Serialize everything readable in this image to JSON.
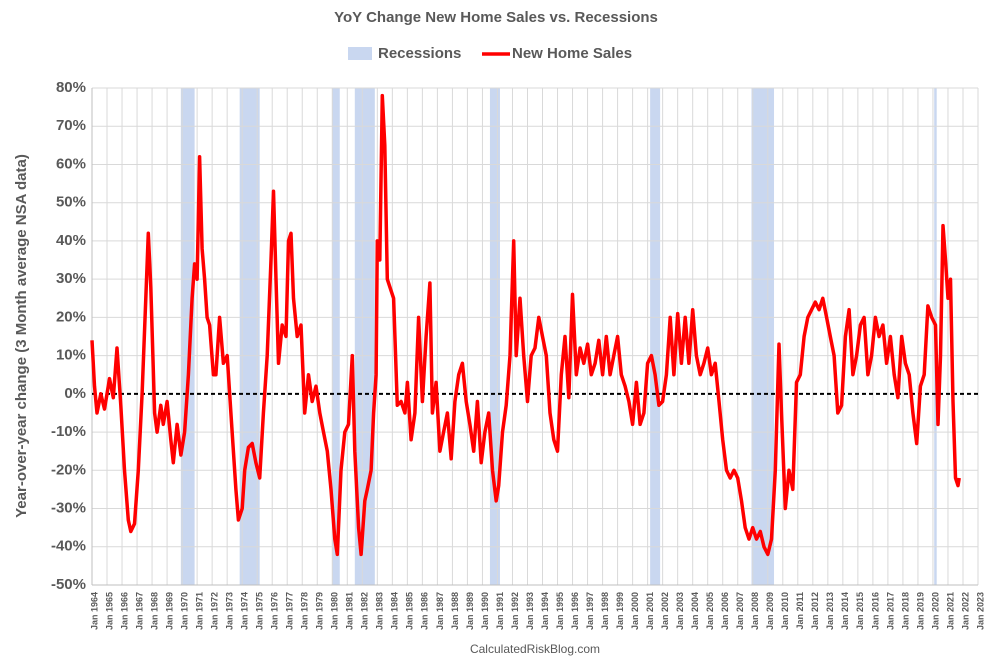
{
  "chart_data": {
    "type": "line",
    "title": "YoY Change New Home Sales vs. Recessions",
    "ylabel": "Year-over-year change (3 Month average NSA data)",
    "source": "CalculatedRiskBlog.com",
    "legend_position": "top",
    "grid": true,
    "ylim": [
      -50,
      80
    ],
    "yticks": [
      {
        "value": -50,
        "label": "-50%"
      },
      {
        "value": -40,
        "label": "-40%"
      },
      {
        "value": -30,
        "label": "-30%"
      },
      {
        "value": -20,
        "label": "-20%"
      },
      {
        "value": -10,
        "label": "-10%"
      },
      {
        "value": 0,
        "label": "0%"
      },
      {
        "value": 10,
        "label": "10%"
      },
      {
        "value": 20,
        "label": "20%"
      },
      {
        "value": 30,
        "label": "30%"
      },
      {
        "value": 40,
        "label": "40%"
      },
      {
        "value": 50,
        "label": "50%"
      },
      {
        "value": 60,
        "label": "60%"
      },
      {
        "value": 70,
        "label": "70%"
      },
      {
        "value": 80,
        "label": "80%"
      }
    ],
    "xlim": [
      "1964-01",
      "2023-01"
    ],
    "xticks": [
      {
        "value": "1964-01",
        "label": "Jan 1964"
      },
      {
        "value": "1965-01",
        "label": "Jan 1965"
      },
      {
        "value": "1966-01",
        "label": "Jan 1966"
      },
      {
        "value": "1967-01",
        "label": "Jan 1967"
      },
      {
        "value": "1968-01",
        "label": "Jan 1968"
      },
      {
        "value": "1969-01",
        "label": "Jan 1969"
      },
      {
        "value": "1970-01",
        "label": "Jan 1970"
      },
      {
        "value": "1971-01",
        "label": "Jan 1971"
      },
      {
        "value": "1972-01",
        "label": "Jan 1972"
      },
      {
        "value": "1973-01",
        "label": "Jan 1973"
      },
      {
        "value": "1974-01",
        "label": "Jan 1974"
      },
      {
        "value": "1975-01",
        "label": "Jan 1975"
      },
      {
        "value": "1976-01",
        "label": "Jan 1976"
      },
      {
        "value": "1977-01",
        "label": "Jan 1977"
      },
      {
        "value": "1978-01",
        "label": "Jan 1978"
      },
      {
        "value": "1979-01",
        "label": "Jan 1979"
      },
      {
        "value": "1980-01",
        "label": "Jan 1980"
      },
      {
        "value": "1981-01",
        "label": "Jan 1981"
      },
      {
        "value": "1982-01",
        "label": "Jan 1982"
      },
      {
        "value": "1983-01",
        "label": "Jan 1983"
      },
      {
        "value": "1984-01",
        "label": "Jan 1984"
      },
      {
        "value": "1985-01",
        "label": "Jan 1985"
      },
      {
        "value": "1986-01",
        "label": "Jan 1986"
      },
      {
        "value": "1987-01",
        "label": "Jan 1987"
      },
      {
        "value": "1988-01",
        "label": "Jan 1988"
      },
      {
        "value": "1989-01",
        "label": "Jan 1989"
      },
      {
        "value": "1990-01",
        "label": "Jan 1990"
      },
      {
        "value": "1991-01",
        "label": "Jan 1991"
      },
      {
        "value": "1992-01",
        "label": "Jan 1992"
      },
      {
        "value": "1993-01",
        "label": "Jan 1993"
      },
      {
        "value": "1994-01",
        "label": "Jan 1994"
      },
      {
        "value": "1995-01",
        "label": "Jan 1995"
      },
      {
        "value": "1996-01",
        "label": "Jan 1996"
      },
      {
        "value": "1997-01",
        "label": "Jan 1997"
      },
      {
        "value": "1998-01",
        "label": "Jan 1998"
      },
      {
        "value": "1999-01",
        "label": "Jan 1999"
      },
      {
        "value": "2000-01",
        "label": "Jan 2000"
      },
      {
        "value": "2001-01",
        "label": "Jan 2001"
      },
      {
        "value": "2002-01",
        "label": "Jan 2002"
      },
      {
        "value": "2003-01",
        "label": "Jan 2003"
      },
      {
        "value": "2004-01",
        "label": "Jan 2004"
      },
      {
        "value": "2005-01",
        "label": "Jan 2005"
      },
      {
        "value": "2006-01",
        "label": "Jan 2006"
      },
      {
        "value": "2007-01",
        "label": "Jan 2007"
      },
      {
        "value": "2008-01",
        "label": "Jan 2008"
      },
      {
        "value": "2009-01",
        "label": "Jan 2009"
      },
      {
        "value": "2010-01",
        "label": "Jan 2010"
      },
      {
        "value": "2011-01",
        "label": "Jan 2011"
      },
      {
        "value": "2012-01",
        "label": "Jan 2012"
      },
      {
        "value": "2013-01",
        "label": "Jan 2013"
      },
      {
        "value": "2014-01",
        "label": "Jan 2014"
      },
      {
        "value": "2015-01",
        "label": "Jan 2015"
      },
      {
        "value": "2016-01",
        "label": "Jan 2016"
      },
      {
        "value": "2017-01",
        "label": "Jan 2017"
      },
      {
        "value": "2018-01",
        "label": "Jan 2018"
      },
      {
        "value": "2019-01",
        "label": "Jan 2019"
      },
      {
        "value": "2020-01",
        "label": "Jan 2020"
      },
      {
        "value": "2021-01",
        "label": "Jan 2021"
      },
      {
        "value": "2022-01",
        "label": "Jan 2022"
      },
      {
        "value": "2023-01",
        "label": "Jan 2023"
      }
    ],
    "recessions": {
      "name": "Recessions",
      "color": "#c9d7f0",
      "periods": [
        {
          "start": "1969-12",
          "end": "1970-11"
        },
        {
          "start": "1973-11",
          "end": "1975-03"
        },
        {
          "start": "1980-01",
          "end": "1980-07"
        },
        {
          "start": "1981-07",
          "end": "1982-11"
        },
        {
          "start": "1990-07",
          "end": "1991-03"
        },
        {
          "start": "2001-03",
          "end": "2001-11"
        },
        {
          "start": "2007-12",
          "end": "2009-06"
        },
        {
          "start": "2020-02",
          "end": "2020-04"
        }
      ]
    },
    "x": [
      "1964-01",
      "1964-03",
      "1964-05",
      "1964-08",
      "1964-11",
      "1965-03",
      "1965-06",
      "1965-09",
      "1965-12",
      "1966-03",
      "1966-06",
      "1966-08",
      "1966-11",
      "1967-02",
      "1967-05",
      "1967-08",
      "1967-10",
      "1967-12",
      "1968-03",
      "1968-05",
      "1968-08",
      "1968-10",
      "1969-01",
      "1969-04",
      "1969-06",
      "1969-09",
      "1969-12",
      "1970-03",
      "1970-06",
      "1970-09",
      "1970-11",
      "1971-01",
      "1971-03",
      "1971-05",
      "1971-07",
      "1971-09",
      "1971-11",
      "1972-02",
      "1972-04",
      "1972-07",
      "1972-10",
      "1973-01",
      "1973-04",
      "1973-06",
      "1973-08",
      "1973-10",
      "1974-01",
      "1974-03",
      "1974-06",
      "1974-09",
      "1974-12",
      "1975-03",
      "1975-06",
      "1975-09",
      "1975-12",
      "1976-02",
      "1976-04",
      "1976-06",
      "1976-09",
      "1976-12",
      "1977-02",
      "1977-04",
      "1977-06",
      "1977-09",
      "1977-12",
      "1978-03",
      "1978-06",
      "1978-09",
      "1978-12",
      "1979-03",
      "1979-06",
      "1979-09",
      "1979-12",
      "1980-03",
      "1980-05",
      "1980-08",
      "1980-11",
      "1981-02",
      "1981-05",
      "1981-07",
      "1981-10",
      "1981-12",
      "1982-03",
      "1982-05",
      "1982-08",
      "1982-10",
      "1982-12",
      "1983-01",
      "1983-03",
      "1983-05",
      "1983-07",
      "1983-09",
      "1983-11",
      "1984-02",
      "1984-05",
      "1984-08",
      "1984-11",
      "1985-01",
      "1985-04",
      "1985-07",
      "1985-10",
      "1986-01",
      "1986-04",
      "1986-07",
      "1986-09",
      "1986-12",
      "1987-03",
      "1987-06",
      "1987-09",
      "1987-12",
      "1988-03",
      "1988-06",
      "1988-09",
      "1988-12",
      "1989-03",
      "1989-06",
      "1989-09",
      "1989-12",
      "1990-03",
      "1990-06",
      "1990-09",
      "1990-12",
      "1991-02",
      "1991-05",
      "1991-08",
      "1991-11",
      "1992-02",
      "1992-04",
      "1992-07",
      "1992-10",
      "1993-01",
      "1993-04",
      "1993-07",
      "1993-10",
      "1994-01",
      "1994-04",
      "1994-07",
      "1994-10",
      "1995-01",
      "1995-04",
      "1995-07",
      "1995-10",
      "1996-01",
      "1996-04",
      "1996-07",
      "1996-10",
      "1997-01",
      "1997-04",
      "1997-07",
      "1997-10",
      "1998-01",
      "1998-04",
      "1998-07",
      "1998-10",
      "1999-01",
      "1999-04",
      "1999-07",
      "1999-10",
      "2000-01",
      "2000-04",
      "2000-07",
      "2000-10",
      "2001-01",
      "2001-04",
      "2001-07",
      "2001-10",
      "2002-01",
      "2002-04",
      "2002-07",
      "2002-10",
      "2003-01",
      "2003-04",
      "2003-07",
      "2003-10",
      "2004-01",
      "2004-04",
      "2004-07",
      "2004-10",
      "2005-01",
      "2005-04",
      "2005-07",
      "2005-10",
      "2006-01",
      "2006-04",
      "2006-07",
      "2006-10",
      "2007-01",
      "2007-04",
      "2007-07",
      "2007-10",
      "2008-01",
      "2008-04",
      "2008-07",
      "2008-10",
      "2009-01",
      "2009-04",
      "2009-07",
      "2009-10",
      "2009-12",
      "2010-03",
      "2010-06",
      "2010-09",
      "2010-12",
      "2011-03",
      "2011-06",
      "2011-09",
      "2011-12",
      "2012-03",
      "2012-06",
      "2012-09",
      "2012-12",
      "2013-03",
      "2013-06",
      "2013-09",
      "2013-12",
      "2014-03",
      "2014-06",
      "2014-09",
      "2014-12",
      "2015-03",
      "2015-06",
      "2015-09",
      "2015-12",
      "2016-03",
      "2016-06",
      "2016-09",
      "2016-12",
      "2017-03",
      "2017-06",
      "2017-09",
      "2017-12",
      "2018-03",
      "2018-06",
      "2018-09",
      "2018-12",
      "2019-03",
      "2019-06",
      "2019-09",
      "2019-12",
      "2020-03",
      "2020-05",
      "2020-07",
      "2020-09",
      "2020-11",
      "2021-01",
      "2021-03",
      "2021-05",
      "2021-07",
      "2021-09",
      "2021-10"
    ],
    "series": [
      {
        "name": "New Home Sales",
        "color": "#ff0000",
        "values": [
          14,
          2,
          -5,
          0,
          -4,
          4,
          -1,
          12,
          -3,
          -20,
          -33,
          -36,
          -34,
          -20,
          0,
          25,
          42,
          28,
          -5,
          -10,
          -3,
          -8,
          -2,
          -12,
          -18,
          -8,
          -16,
          -10,
          5,
          25,
          34,
          30,
          62,
          38,
          30,
          20,
          18,
          5,
          5,
          20,
          8,
          10,
          -5,
          -15,
          -25,
          -33,
          -30,
          -20,
          -14,
          -13,
          -18,
          -22,
          -5,
          10,
          35,
          53,
          30,
          8,
          18,
          15,
          40,
          42,
          25,
          15,
          18,
          -5,
          5,
          -2,
          2,
          -5,
          -10,
          -15,
          -25,
          -38,
          -42,
          -20,
          -10,
          -8,
          10,
          -15,
          -35,
          -42,
          -28,
          -25,
          -20,
          -5,
          5,
          40,
          35,
          78,
          65,
          30,
          28,
          25,
          -3,
          -2,
          -5,
          3,
          -12,
          -5,
          20,
          -2,
          15,
          29,
          -5,
          3,
          -15,
          -10,
          -5,
          -17,
          -2,
          5,
          8,
          -2,
          -8,
          -15,
          -2,
          -18,
          -10,
          -5,
          -20,
          -28,
          -24,
          -10,
          -3,
          10,
          40,
          10,
          25,
          10,
          -2,
          10,
          12,
          20,
          15,
          10,
          -5,
          -12,
          -15,
          5,
          15,
          -1,
          26,
          5,
          12,
          8,
          13,
          5,
          8,
          14,
          5,
          15,
          5,
          10,
          15,
          5,
          2,
          -2,
          -8,
          3,
          -8,
          -5,
          8,
          10,
          5,
          -3,
          -2,
          5,
          20,
          5,
          21,
          8,
          20,
          8,
          22,
          10,
          5,
          8,
          12,
          5,
          8,
          -2,
          -12,
          -20,
          -22,
          -20,
          -22,
          -28,
          -35,
          -38,
          -35,
          -38,
          -36,
          -40,
          -42,
          -38,
          -20,
          13,
          -5,
          -30,
          -20,
          -25,
          3,
          5,
          15,
          20,
          22,
          24,
          22,
          25,
          20,
          15,
          10,
          -5,
          -3,
          15,
          22,
          5,
          10,
          18,
          20,
          5,
          10,
          20,
          15,
          18,
          8,
          15,
          5,
          -1,
          15,
          8,
          5,
          -5,
          -13,
          2,
          5,
          23,
          20,
          18,
          -8,
          10,
          44,
          35,
          25,
          30,
          -2,
          -22,
          -24,
          -22
        ]
      }
    ]
  }
}
